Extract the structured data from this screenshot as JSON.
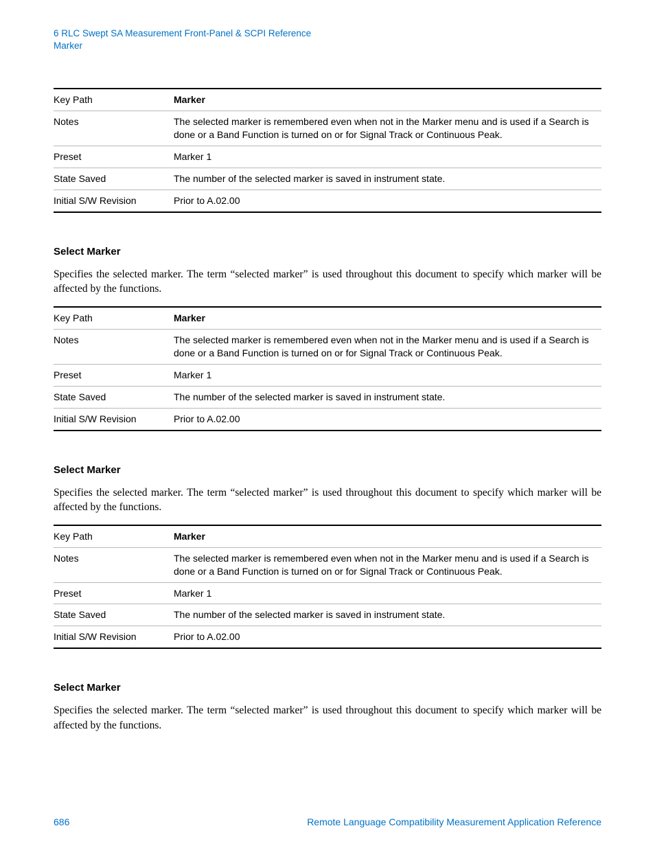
{
  "header": {
    "line1": "6  RLC Swept SA Measurement Front-Panel & SCPI Reference",
    "line2": "Marker"
  },
  "tableRows": [
    {
      "label": "Key Path",
      "value": "Marker",
      "bold": true
    },
    {
      "label": "Notes",
      "value": "The selected marker is remembered even when not in the Marker menu and is used if a Search is done or a Band Function is turned on or for Signal Track or Continuous Peak."
    },
    {
      "label": "Preset",
      "value": "Marker 1"
    },
    {
      "label": "State Saved",
      "value": "The number of the selected marker is saved in instrument state."
    },
    {
      "label": "Initial S/W Revision",
      "value": "Prior to A.02.00"
    }
  ],
  "section": {
    "heading": "Select Marker",
    "body": "Specifies the selected marker. The term “selected marker” is used throughout this document to specify which marker will be affected by the functions."
  },
  "footer": {
    "page": "686",
    "title": "Remote Language Compatibility Measurement Application Reference"
  },
  "colors": {
    "link": "#0072c6",
    "border_dark": "#000000",
    "border_light": "#b8b8b8"
  }
}
